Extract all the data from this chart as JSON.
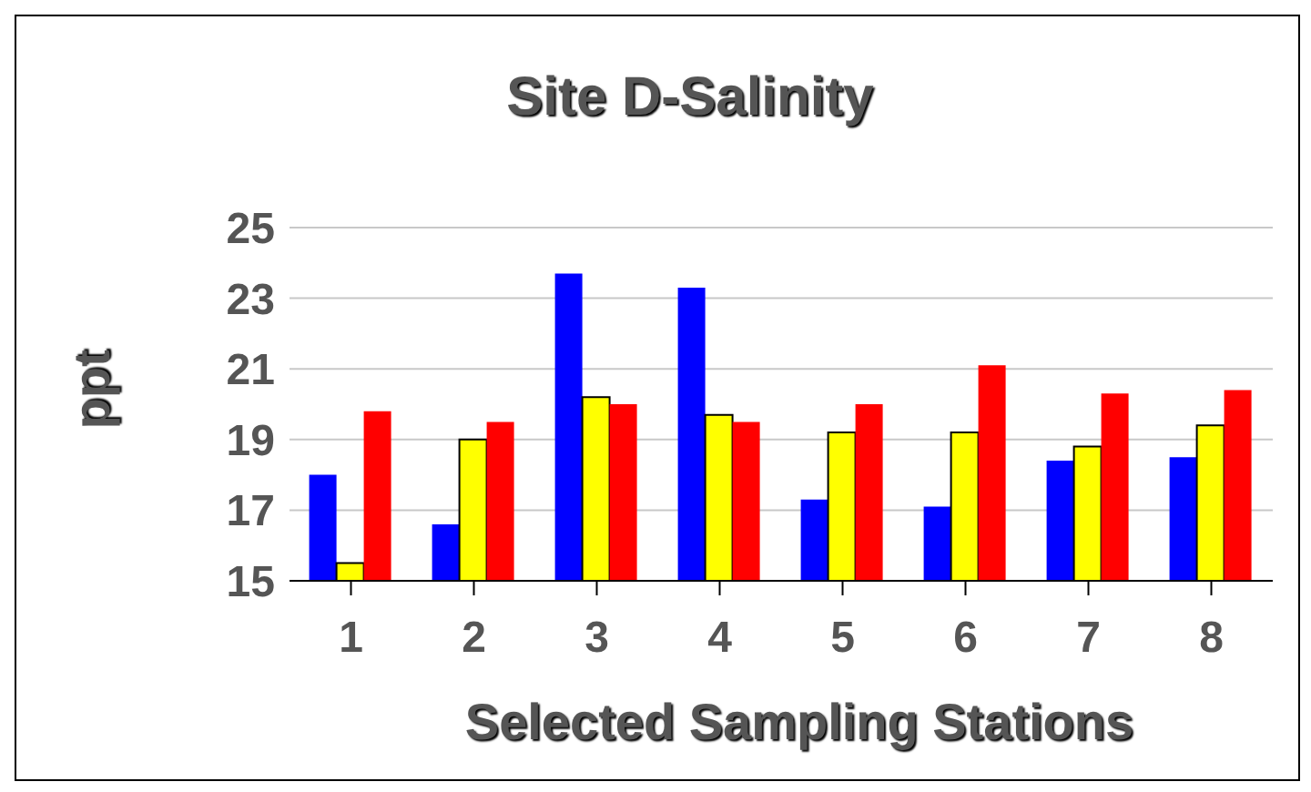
{
  "chart_data": {
    "type": "bar",
    "title": "Site D-Salinity",
    "xlabel": "Selected Sampling Stations",
    "ylabel": "ppt",
    "categories": [
      "1",
      "2",
      "3",
      "4",
      "5",
      "6",
      "7",
      "8"
    ],
    "series": [
      {
        "color": "#0000ff",
        "values": [
          18.0,
          16.6,
          23.7,
          23.3,
          17.3,
          17.1,
          18.4,
          18.5
        ]
      },
      {
        "color": "#ffff00",
        "values": [
          15.5,
          19.0,
          20.2,
          19.7,
          19.2,
          19.2,
          18.8,
          19.4
        ]
      },
      {
        "color": "#ff0000",
        "values": [
          19.8,
          19.5,
          20.0,
          19.5,
          20.0,
          21.1,
          20.3,
          20.4
        ]
      }
    ],
    "ylim": [
      15,
      25
    ],
    "yticks": [
      15,
      17,
      19,
      21,
      23,
      25
    ],
    "grid": "y",
    "legend": false
  }
}
